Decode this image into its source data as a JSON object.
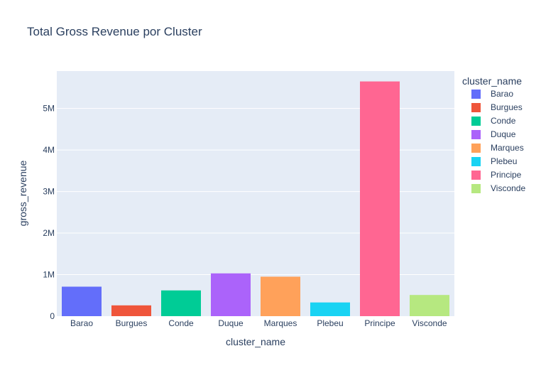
{
  "chart_data": {
    "type": "bar",
    "title": "Total Gross Revenue por Cluster",
    "xlabel": "cluster_name",
    "ylabel": "gross_revenue",
    "categories": [
      "Barao",
      "Burgues",
      "Conde",
      "Duque",
      "Marques",
      "Plebeu",
      "Principe",
      "Visconde"
    ],
    "values": [
      710000,
      260000,
      620000,
      1030000,
      950000,
      330000,
      5650000,
      510000
    ],
    "colors": [
      "#636efa",
      "#ef553b",
      "#00cc96",
      "#ab63fa",
      "#ffa15a",
      "#19d3f3",
      "#ff6692",
      "#b6e880"
    ],
    "ylim": [
      0,
      5900000
    ],
    "yticks": [
      {
        "value": 0,
        "label": "0"
      },
      {
        "value": 1000000,
        "label": "1M"
      },
      {
        "value": 2000000,
        "label": "2M"
      },
      {
        "value": 3000000,
        "label": "3M"
      },
      {
        "value": 4000000,
        "label": "4M"
      },
      {
        "value": 5000000,
        "label": "5M"
      }
    ],
    "grid": true,
    "plot_background": "#e5ecf6",
    "legend": {
      "title": "cluster_name",
      "placement": "right",
      "entries": [
        "Barao",
        "Burgues",
        "Conde",
        "Duque",
        "Marques",
        "Plebeu",
        "Principe",
        "Visconde"
      ]
    }
  }
}
